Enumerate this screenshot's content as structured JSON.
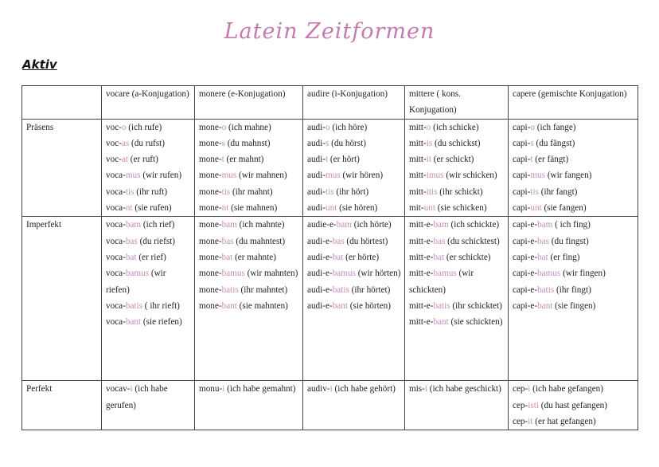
{
  "title": "Latein Zeitformen",
  "section": "Aktiv",
  "accent_color": "#c98cb8",
  "columns": [
    "",
    "vocare (a-Konjugation)",
    "monere (e-Konjugation)",
    "audire (i-Konjugation)",
    "mittere ( kons. Konjugation)",
    "capere (gemischte Konjugation)"
  ],
  "rows": [
    {
      "tense": "Präsens",
      "cells": [
        [
          [
            "voc-",
            "o",
            " (ich rufe)"
          ],
          [
            "voc-",
            "as",
            " (du rufst)"
          ],
          [
            "voc-",
            "at",
            " (er ruft)"
          ],
          [
            "voca-",
            "mus",
            " (wir rufen)"
          ],
          [
            "voca-",
            "tis",
            " (ihr ruft)"
          ],
          [
            "voca-",
            "nt",
            " (sie rufen)"
          ]
        ],
        [
          [
            "mone-",
            "o",
            " (ich mahne)"
          ],
          [
            "mone-",
            "s",
            " (du mahnst)"
          ],
          [
            "mone-",
            "t",
            " (er mahnt)"
          ],
          [
            "mone-",
            "mus",
            " (wir mahnen)"
          ],
          [
            "mone-",
            "tis",
            " (ihr mahnt)"
          ],
          [
            "mone-",
            "nt",
            " (sie mahnen)"
          ]
        ],
        [
          [
            "audi-",
            "o",
            " (ich höre)"
          ],
          [
            "audi-",
            "s",
            " (du hörst)"
          ],
          [
            "audi-",
            "t",
            "  (er hört)"
          ],
          [
            "audi-",
            "mus",
            " (wir hören)"
          ],
          [
            "audi-",
            "tis",
            " (ihr hört)"
          ],
          [
            "audi-",
            "unt",
            " (sie hören)"
          ]
        ],
        [
          [
            "mitt-",
            "o",
            " (ich schicke)"
          ],
          [
            "mitt-",
            "is",
            " (du schickst)"
          ],
          [
            "mitt-",
            "it",
            " (er schickt)"
          ],
          [
            "mitt-",
            "imus",
            " (wir schicken)"
          ],
          [
            "mitt-",
            "itis",
            " (ihr schickt)"
          ],
          [
            "mit-",
            "unt",
            " (sie schicken)"
          ]
        ],
        [
          [
            "capi-",
            "o",
            " (ich fange)"
          ],
          [
            "capi-",
            "s",
            " (du fängst)"
          ],
          [
            "capi-",
            "t",
            " (er fängt)"
          ],
          [
            "capi-",
            "mus",
            " (wir fangen)"
          ],
          [
            "capi-",
            "tis",
            " (ihr fangt)"
          ],
          [
            "capi-",
            "unt",
            " (sie fangen)"
          ]
        ]
      ]
    },
    {
      "tense": "Imperfekt",
      "cells": [
        [
          [
            "voca-",
            "bam",
            " (ich rief)"
          ],
          [
            "voca-",
            "bas",
            " (du riefst)"
          ],
          [
            "voca-",
            "bat",
            " (er rief)"
          ],
          [
            "voca-",
            "bamus",
            " (wir riefen)"
          ],
          [
            "voca-",
            "batis",
            " ( ihr rieft)"
          ],
          [
            "voca-",
            "bant",
            " (sie riefen)"
          ]
        ],
        [
          [
            "mone-",
            "bam",
            " (ich mahnte)"
          ],
          [
            "mone-",
            "bas",
            " (du mahntest)"
          ],
          [
            "mone-",
            "bat",
            " (er mahnte)"
          ],
          [
            "mone-",
            "bamus",
            " (wir mahnten)"
          ],
          [
            "mone-",
            "batis",
            " (ihr mahntet)"
          ],
          [
            "mone-",
            "bant",
            " (sie mahnten)"
          ]
        ],
        [
          [
            "audie-e-",
            "bam",
            " (ich hörte)"
          ],
          [
            "audi-e-",
            "bas",
            " (du hörtest)"
          ],
          [
            "audi-e-",
            "bat",
            " (er hörte)"
          ],
          [
            "audi-e-",
            "bamus",
            " (wir hörten)"
          ],
          [
            "audi-e-",
            "batis",
            " (ihr hörtet)"
          ],
          [
            "audi-e-",
            "bant",
            " (sie hörten)"
          ]
        ],
        [
          [
            "mitt-e-",
            "bam",
            " (ich schickte)"
          ],
          [
            "mitt-e-",
            "bas",
            " (du schicktest)"
          ],
          [
            "mitt-e-",
            "bat",
            " (er schickte)"
          ],
          [
            "mitt-e-",
            "bamus",
            " (wir schickten)"
          ],
          [
            "mitt-e-",
            "batis",
            " (ihr schicktet)"
          ],
          [
            "mitt-e-",
            "bant",
            " (sie schickten)"
          ]
        ],
        [
          [
            "capi-e-",
            "bam",
            " ( ich fing)"
          ],
          [
            "capi-e-",
            "bas",
            " (du fingst)"
          ],
          [
            "capi-e-",
            "bat",
            " (er fing)"
          ],
          [
            "capi-e-",
            "bamus",
            " (wir fingen)"
          ],
          [
            "capi-e-",
            "batis",
            " (ihr fingt)"
          ],
          [
            "capi-e-",
            "bant",
            " (sie fingen)"
          ]
        ]
      ]
    },
    {
      "tense": "Perfekt",
      "cells": [
        [
          [
            "vocav-",
            "i",
            " (ich habe gerufen)"
          ]
        ],
        [
          [
            "monu-",
            "i",
            " (ich habe gemahnt)"
          ]
        ],
        [
          [
            "audiv-",
            "i",
            " (ich habe gehört)"
          ]
        ],
        [
          [
            "mis-",
            "i",
            " (ich habe geschickt)"
          ]
        ],
        [
          [
            "cep-",
            "i",
            "  (ich habe gefangen)"
          ],
          [
            "cep-",
            "isti",
            " (du hast gefangen)"
          ],
          [
            "cep-",
            "it",
            " (er hat gefangen)"
          ]
        ]
      ]
    }
  ]
}
